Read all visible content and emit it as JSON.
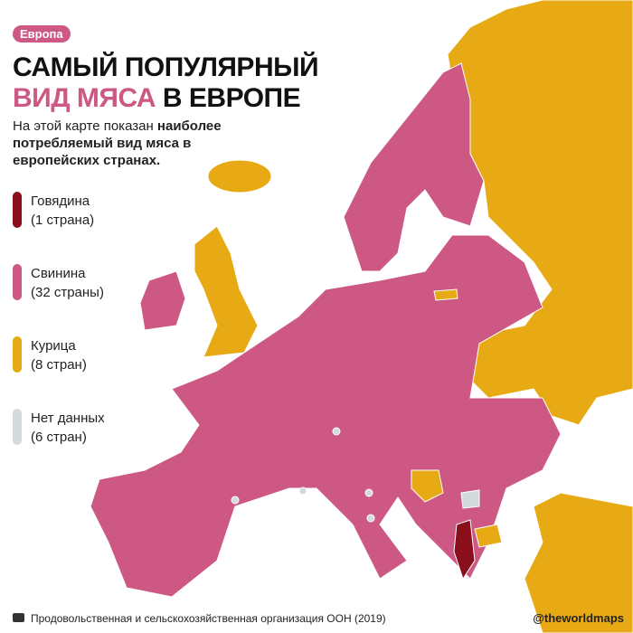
{
  "header": {
    "badge": "Европа",
    "title_line1": "САМЫЙ ПОПУЛЯРНЫЙ",
    "title_highlight": "ВИД МЯСА",
    "title_rest": "В ЕВРОПЕ",
    "description_plain": "На этой карте показан ",
    "description_bold": "наиболее потребляемый вид мяса в европейских странах."
  },
  "legend": [
    {
      "label": "Говядина",
      "count": "(1 страна)",
      "color": "#8b0f1a"
    },
    {
      "label": "Свинина",
      "count": "(32 страны)",
      "color": "#cc5883"
    },
    {
      "label": "Курица",
      "count": "(8 стран)",
      "color": "#e8aa14"
    },
    {
      "label": "Нет данных",
      "count": "(6 стран)",
      "color": "#d3dadc"
    }
  ],
  "footer": {
    "source": "Продовольственная и сельскохозяйственная организация ООН (2019)",
    "handle": "@theworldmaps"
  }
}
